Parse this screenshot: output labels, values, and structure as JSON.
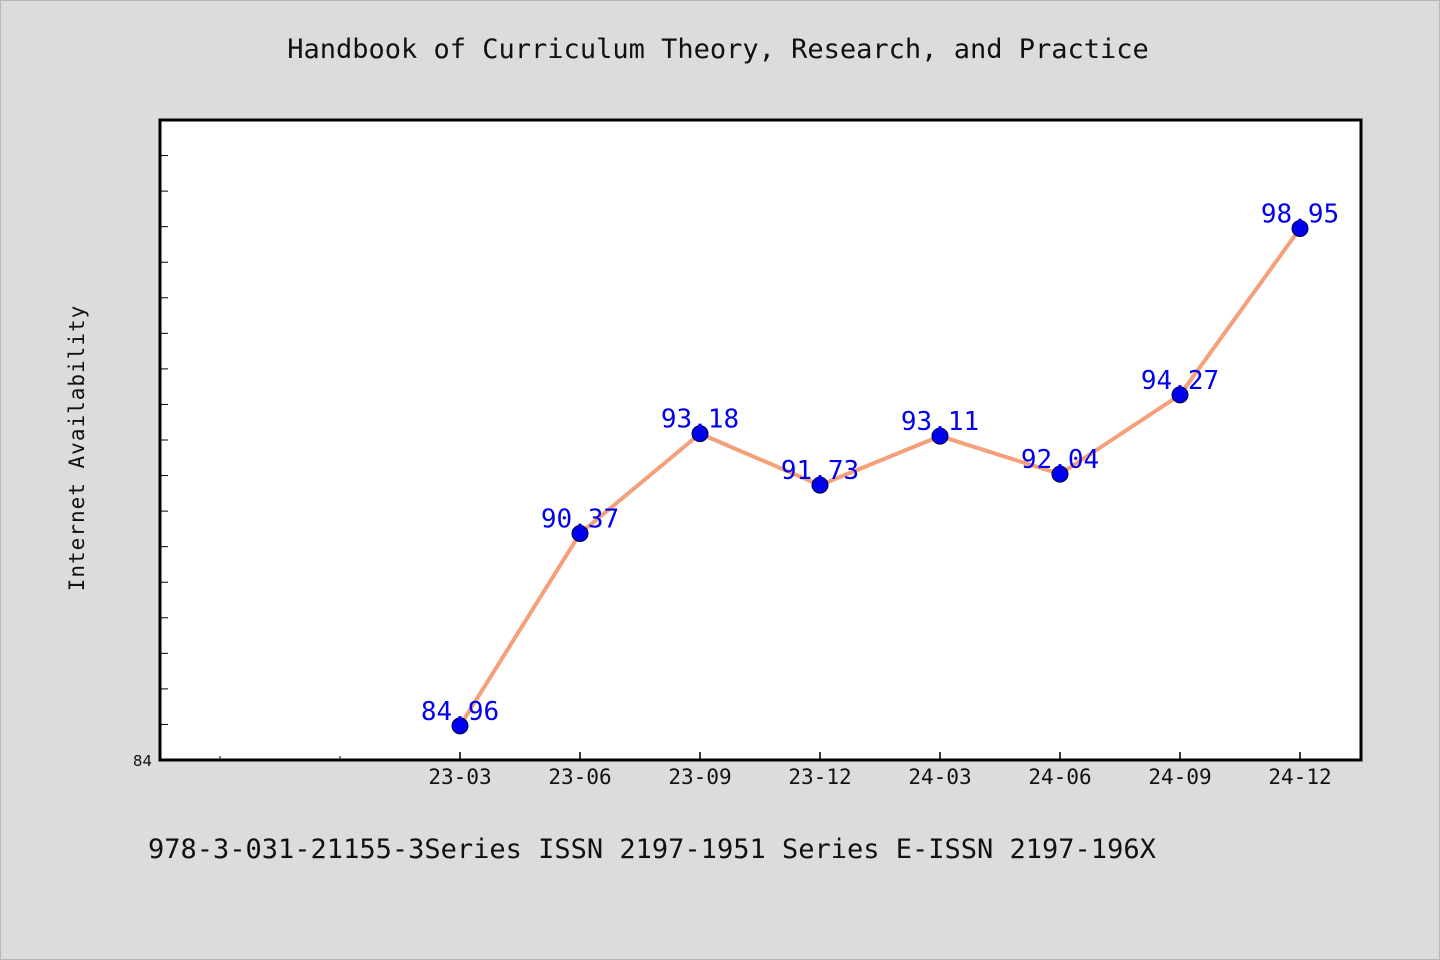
{
  "title": "Handbook of Curriculum Theory, Research, and Practice",
  "footer": "978-3-031-21155-3Series ISSN 2197-1951 Series E-ISSN 2197-196X",
  "colors": {
    "background": "#dcdcdc",
    "plot_area": "#ffffff",
    "line": "#f4a07a",
    "marker": "#0000ee",
    "data_label": "#0000ee"
  },
  "chart_data": {
    "type": "line",
    "title": "Handbook of Curriculum Theory, Research, and Practice",
    "xlabel": "",
    "ylabel": "Internet Availability",
    "categories": [
      "23-03",
      "23-06",
      "23-09",
      "23-12",
      "24-03",
      "24-06",
      "24-09",
      "24-12"
    ],
    "series": [
      {
        "values": [
          84.96,
          90.37,
          93.18,
          91.73,
          93.11,
          92.04,
          94.27,
          98.95
        ]
      }
    ],
    "ylim": [
      84,
      102
    ],
    "y_tick_labels": [
      "84"
    ],
    "grid": false,
    "legend": "none",
    "data_labels": true
  }
}
